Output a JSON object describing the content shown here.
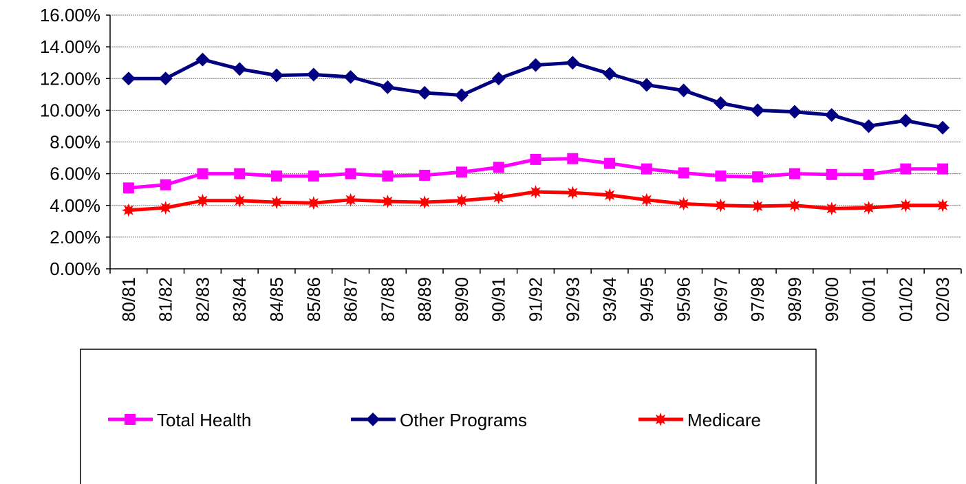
{
  "chart_data": {
    "type": "line",
    "categories": [
      "80/81",
      "81/82",
      "82/83",
      "83/84",
      "84/85",
      "85/86",
      "86/87",
      "87/88",
      "88/89",
      "89/90",
      "90/91",
      "91/92",
      "92/93",
      "93/94",
      "94/95",
      "95/96",
      "96/97",
      "97/98",
      "98/99",
      "99/00",
      "00/01",
      "01/02",
      "02/03"
    ],
    "series": [
      {
        "name": "Total Health",
        "color": "#ff00ff",
        "marker": "square",
        "values": [
          5.1,
          5.3,
          6.0,
          6.0,
          5.85,
          5.85,
          6.0,
          5.85,
          5.9,
          6.1,
          6.4,
          6.9,
          6.95,
          6.65,
          6.3,
          6.05,
          5.85,
          5.8,
          6.0,
          5.95,
          5.95,
          6.3,
          6.3
        ]
      },
      {
        "name": "Other Programs",
        "color": "#000080",
        "marker": "diamond",
        "values": [
          12.0,
          12.0,
          13.2,
          12.6,
          12.2,
          12.25,
          12.1,
          11.45,
          11.1,
          10.95,
          12.0,
          12.85,
          13.0,
          12.3,
          11.6,
          11.25,
          10.45,
          10.0,
          9.9,
          9.7,
          9.0,
          9.35,
          8.9
        ]
      },
      {
        "name": "Medicare",
        "color": "#ff0000",
        "marker": "star",
        "values": [
          3.7,
          3.85,
          4.3,
          4.3,
          4.2,
          4.15,
          4.35,
          4.25,
          4.2,
          4.3,
          4.5,
          4.85,
          4.8,
          4.65,
          4.35,
          4.1,
          4.0,
          3.95,
          4.0,
          3.8,
          3.85,
          4.0,
          4.0
        ]
      }
    ],
    "ylim": [
      0,
      16
    ],
    "yticks": [
      {
        "value": 0,
        "label": "0.00%"
      },
      {
        "value": 2,
        "label": "2.00%"
      },
      {
        "value": 4,
        "label": "4.00%"
      },
      {
        "value": 6,
        "label": "6.00%"
      },
      {
        "value": 8,
        "label": "8.00%"
      },
      {
        "value": 10,
        "label": "10.00%"
      },
      {
        "value": 12,
        "label": "12.00%"
      },
      {
        "value": 14,
        "label": "14.00%"
      },
      {
        "value": 16,
        "label": "16.00%"
      }
    ],
    "grid": true,
    "legend": "bottom"
  }
}
